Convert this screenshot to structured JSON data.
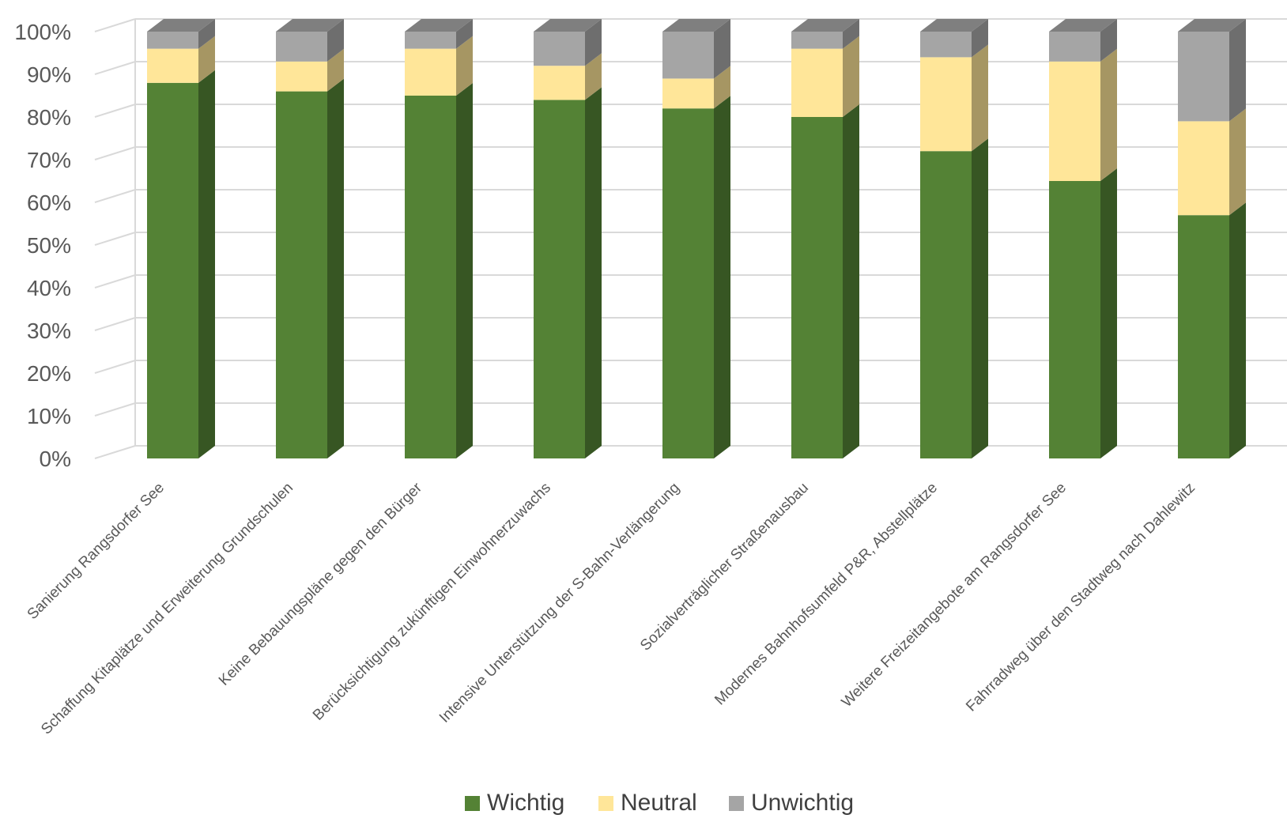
{
  "chart_data": {
    "type": "bar",
    "stacked": true,
    "percent": true,
    "three_d": true,
    "title": "",
    "xlabel": "",
    "ylabel": "",
    "ylim": [
      0,
      100
    ],
    "yticks": [
      "0%",
      "10%",
      "20%",
      "30%",
      "40%",
      "50%",
      "60%",
      "70%",
      "80%",
      "90%",
      "100%"
    ],
    "grid": true,
    "legend_position": "bottom",
    "categories": [
      "Sanierung Rangsdorfer See",
      "Schaffung Kitaplätze und Erweiterung Grundschulen",
      "Keine Bebauungspläne gegen den Bürger",
      "Berücksichtigung zukünftigen Einwohnerzuwachs",
      "Intensive Unterstützung der S-Bahn-Verlängerung",
      "Sozialverträglicher Straßenausbau",
      "Modernes Bahnhofsumfeld P&R, Abstellplätze",
      "Weitere Freizeitangebote am Rangsdorfer See",
      "Fahrradweg über den Stadtweg nach Dahlewitz"
    ],
    "series": [
      {
        "name": "Wichtig",
        "color": "#548235",
        "side_color": "#375623",
        "top_color": "#6f9a4f",
        "values": [
          88,
          86,
          85,
          84,
          82,
          80,
          72,
          65,
          57
        ]
      },
      {
        "name": "Neutral",
        "color": "#ffe699",
        "side_color": "#a69663",
        "top_color": "#ffeeb3",
        "values": [
          8,
          7,
          11,
          8,
          7,
          16,
          22,
          28,
          22
        ]
      },
      {
        "name": "Unwichtig",
        "color": "#a5a5a5",
        "side_color": "#6e6e6e",
        "top_color": "#7f7f7f",
        "values": [
          4,
          7,
          4,
          8,
          11,
          4,
          6,
          7,
          21
        ]
      }
    ]
  }
}
